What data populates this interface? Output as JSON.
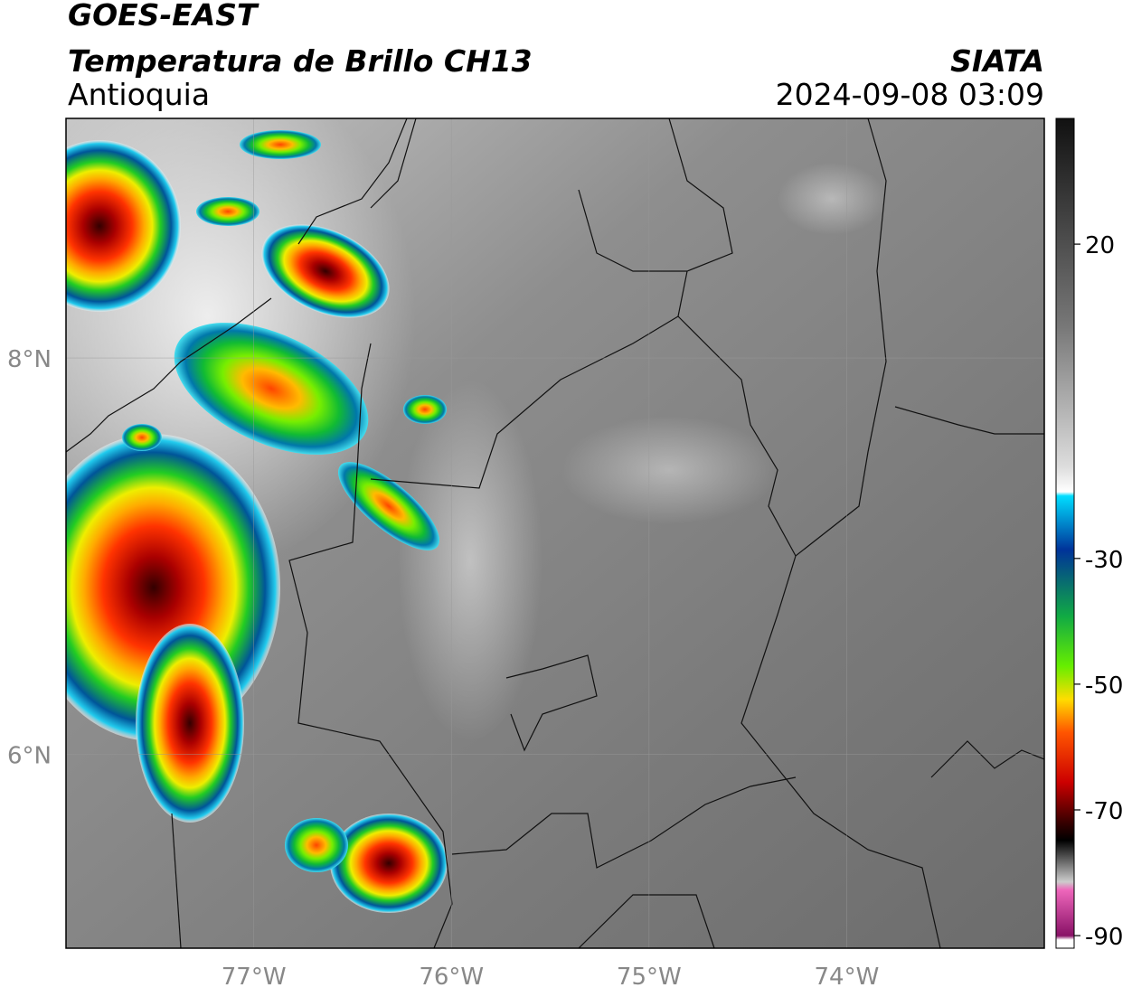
{
  "header": {
    "title": "GOES-EAST",
    "subtitle": "Temperatura de Brillo CH13",
    "region": "Antioquia",
    "source": "SIATA",
    "timestamp": "2024-09-08 03:09"
  },
  "map": {
    "xlim": [
      -77.95,
      -73.0
    ],
    "ylim": [
      5.02,
      9.21
    ],
    "xticks": [
      {
        "value": -77,
        "label": "77°W"
      },
      {
        "value": -76,
        "label": "76°W"
      },
      {
        "value": -75,
        "label": "75°W"
      },
      {
        "value": -74,
        "label": "74°W"
      }
    ],
    "yticks": [
      {
        "value": 8,
        "label": "8°N"
      },
      {
        "value": 6,
        "label": "6°N"
      }
    ],
    "grid": true
  },
  "colorbar": {
    "lim": [
      -92,
      40
    ],
    "ticks": [
      20,
      -30,
      -50,
      -70,
      -90
    ]
  }
}
